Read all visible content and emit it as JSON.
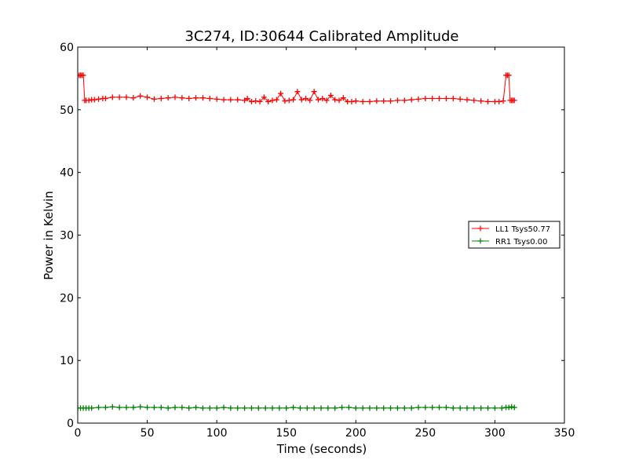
{
  "chart_data": {
    "type": "line",
    "title": "3C274, ID:30644 Calibrated Amplitude",
    "xlabel": "Time (seconds)",
    "ylabel": "Power in Kelvin",
    "xlim": [
      0,
      350
    ],
    "ylim": [
      0,
      60
    ],
    "xticks": [
      0,
      50,
      100,
      150,
      200,
      250,
      300,
      350
    ],
    "yticks": [
      0,
      10,
      20,
      30,
      40,
      50,
      60
    ],
    "grid": false,
    "legend_position": "right",
    "series": [
      {
        "name": "LL1 Tsys50.77",
        "color": "#ff0000",
        "marker": "+",
        "x": [
          1,
          2,
          3,
          4,
          5,
          6,
          8,
          10,
          12,
          15,
          18,
          20,
          25,
          30,
          35,
          40,
          45,
          50,
          55,
          60,
          65,
          70,
          75,
          80,
          85,
          90,
          95,
          100,
          105,
          110,
          115,
          120,
          122,
          125,
          128,
          131,
          134,
          137,
          140,
          143,
          146,
          149,
          152,
          155,
          158,
          161,
          164,
          167,
          170,
          173,
          176,
          179,
          182,
          185,
          188,
          191,
          194,
          197,
          200,
          205,
          210,
          215,
          220,
          225,
          230,
          235,
          240,
          245,
          250,
          255,
          260,
          265,
          270,
          275,
          280,
          285,
          290,
          295,
          300,
          303,
          306,
          308,
          309,
          310,
          311,
          312,
          313,
          314
        ],
        "values": [
          55.5,
          55.5,
          55.5,
          55.5,
          51.5,
          51.5,
          51.5,
          51.6,
          51.6,
          51.7,
          51.8,
          51.8,
          52.0,
          52.0,
          52.0,
          51.9,
          52.2,
          52.0,
          51.7,
          51.8,
          51.9,
          52.0,
          51.9,
          51.8,
          51.9,
          51.9,
          51.8,
          51.7,
          51.6,
          51.6,
          51.6,
          51.5,
          51.8,
          51.3,
          51.4,
          51.3,
          52.0,
          51.3,
          51.5,
          51.6,
          52.6,
          51.4,
          51.5,
          51.6,
          52.9,
          51.6,
          51.8,
          51.5,
          52.9,
          51.6,
          51.8,
          51.5,
          52.3,
          51.6,
          51.5,
          51.9,
          51.3,
          51.3,
          51.4,
          51.3,
          51.3,
          51.4,
          51.4,
          51.4,
          51.5,
          51.5,
          51.6,
          51.7,
          51.8,
          51.8,
          51.8,
          51.8,
          51.8,
          51.7,
          51.6,
          51.5,
          51.4,
          51.3,
          51.3,
          51.3,
          51.4,
          55.5,
          55.5,
          55.5,
          51.5,
          51.5,
          51.5,
          51.5
        ]
      },
      {
        "name": "RR1 Tsys0.00",
        "color": "#008000",
        "marker": "+",
        "x": [
          0,
          2,
          4,
          6,
          8,
          10,
          15,
          20,
          25,
          30,
          35,
          40,
          45,
          50,
          55,
          60,
          65,
          70,
          75,
          80,
          85,
          90,
          95,
          100,
          105,
          110,
          115,
          120,
          125,
          130,
          135,
          140,
          145,
          150,
          155,
          160,
          165,
          170,
          175,
          180,
          185,
          190,
          195,
          200,
          205,
          210,
          215,
          220,
          225,
          230,
          235,
          240,
          245,
          250,
          255,
          260,
          265,
          270,
          275,
          280,
          285,
          290,
          295,
          300,
          305,
          308,
          310,
          312,
          314
        ],
        "values": [
          2.4,
          2.4,
          2.4,
          2.4,
          2.4,
          2.4,
          2.5,
          2.5,
          2.6,
          2.5,
          2.5,
          2.5,
          2.6,
          2.5,
          2.5,
          2.5,
          2.4,
          2.5,
          2.5,
          2.4,
          2.5,
          2.4,
          2.4,
          2.4,
          2.5,
          2.4,
          2.4,
          2.4,
          2.4,
          2.4,
          2.4,
          2.4,
          2.4,
          2.4,
          2.5,
          2.4,
          2.4,
          2.4,
          2.4,
          2.4,
          2.4,
          2.5,
          2.5,
          2.4,
          2.4,
          2.4,
          2.4,
          2.4,
          2.4,
          2.4,
          2.4,
          2.4,
          2.5,
          2.5,
          2.5,
          2.5,
          2.5,
          2.4,
          2.4,
          2.4,
          2.4,
          2.4,
          2.4,
          2.4,
          2.4,
          2.5,
          2.5,
          2.6,
          2.5
        ]
      }
    ]
  }
}
